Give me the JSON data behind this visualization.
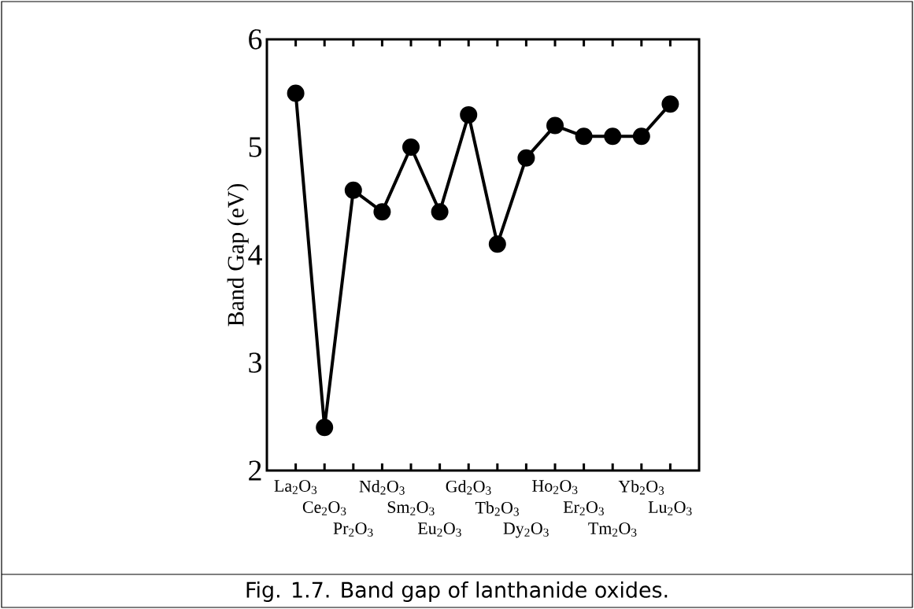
{
  "chart_data": {
    "type": "line",
    "ylabel": "Band Gap (eV)",
    "categories": [
      "La$_{2}$O$_{3}$",
      "Ce$_{2}$O$_{3}$",
      "Pr$_{2}$O$_{3}$",
      "Nd$_{2}$O$_{3}$",
      "Sm$_{2}$O$_{3}$",
      "Eu$_{2}$O$_{3}$",
      "Gd$_{2}$O$_{3}$",
      "Tb$_{2}$O$_{3}$",
      "Dy$_{2}$O$_{3}$",
      "Ho$_{2}$O$_{3}$",
      "Er$_{2}$O$_{3}$",
      "Tm$_{2}$O$_{3}$",
      "Yb$_{2}$O$_{3}$",
      "Lu$_{2}$O$_{3}$"
    ],
    "values": [
      5.5,
      2.4,
      4.6,
      4.4,
      5.0,
      4.4,
      5.3,
      4.1,
      4.9,
      5.2,
      5.1,
      5.1,
      5.1,
      5.4
    ],
    "color": "#000000",
    "ylim": [
      2,
      6
    ],
    "yticks": [
      2,
      3,
      4,
      5,
      6
    ],
    "marker": "circle",
    "line_style": "solid",
    "annotations": [
      "Fig. 1.7. Band gap of lanthanide oxides."
    ]
  }
}
